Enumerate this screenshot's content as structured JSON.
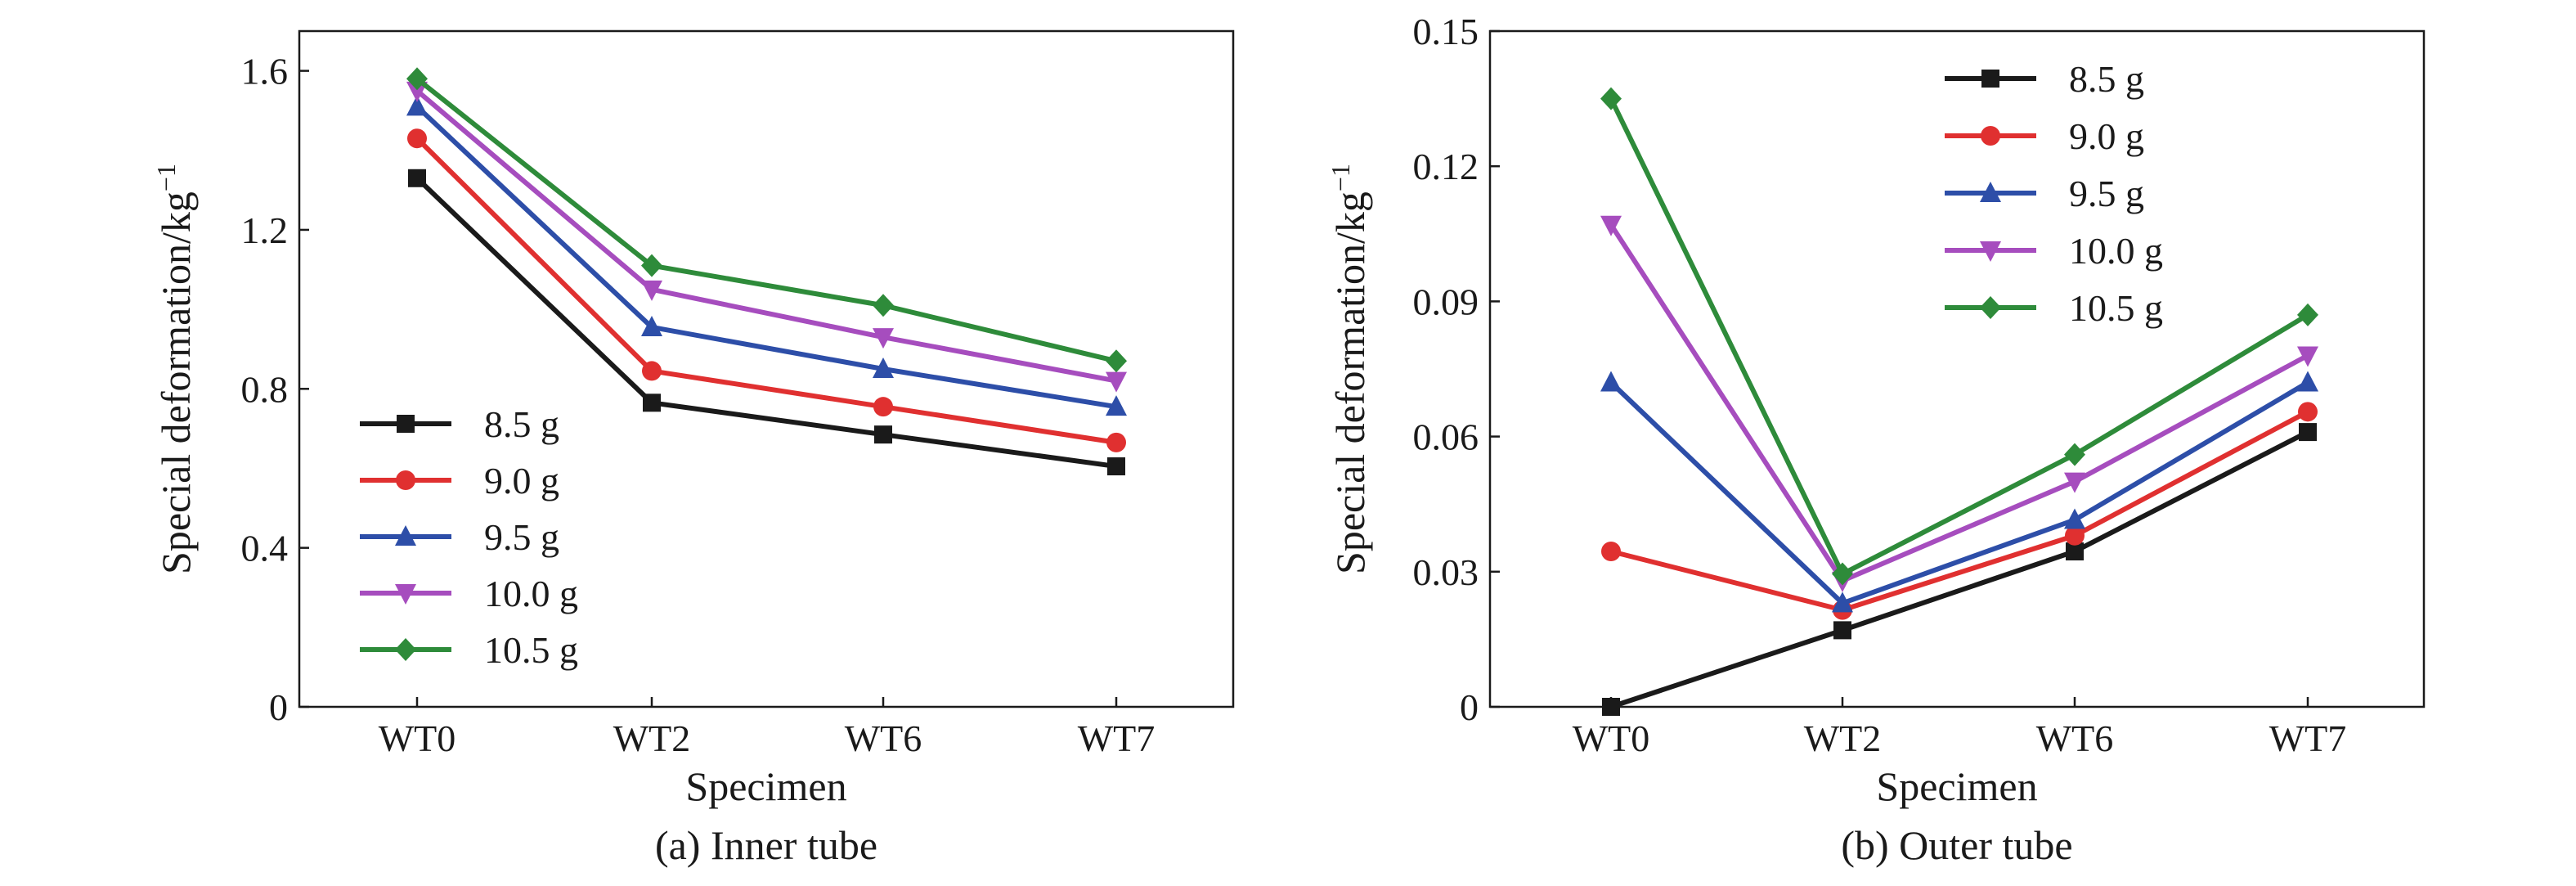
{
  "chart_data": [
    {
      "id": "inner",
      "type": "line",
      "caption": "(a) Inner tube",
      "xlabel": "Specimen",
      "ylabel": "Special deformation/kg",
      "ylabel_sup": "−1",
      "categories": [
        "WT0",
        "WT2",
        "WT6",
        "WT7"
      ],
      "ylim": [
        0,
        1.7
      ],
      "yticks": [
        0,
        0.4,
        0.8,
        1.2,
        1.6
      ],
      "ytick_labels": [
        "0",
        "0.4",
        "0.8",
        "1.2",
        "1.6"
      ],
      "legend_position": "bottom-left",
      "series": [
        {
          "name": "8.5 g",
          "color": "#1a1a1a",
          "marker": "square",
          "values": [
            1.33,
            0.765,
            0.685,
            0.605
          ]
        },
        {
          "name": "9.0 g",
          "color": "#e03030",
          "marker": "circle",
          "values": [
            1.43,
            0.845,
            0.755,
            0.665
          ]
        },
        {
          "name": "9.5 g",
          "color": "#2d4ea8",
          "marker": "triangle-up",
          "values": [
            1.51,
            0.955,
            0.85,
            0.755
          ]
        },
        {
          "name": "10.0 g",
          "color": "#a64dbe",
          "marker": "triangle-down",
          "values": [
            1.55,
            1.05,
            0.93,
            0.82
          ]
        },
        {
          "name": "10.5 g",
          "color": "#2e8b3a",
          "marker": "diamond",
          "values": [
            1.58,
            1.11,
            1.01,
            0.87
          ]
        }
      ]
    },
    {
      "id": "outer",
      "type": "line",
      "caption": "(b) Outer tube",
      "xlabel": "Specimen",
      "ylabel": "Special deformation/kg",
      "ylabel_sup": "−1",
      "categories": [
        "WT0",
        "WT2",
        "WT6",
        "WT7"
      ],
      "ylim": [
        0,
        0.15
      ],
      "yticks": [
        0,
        0.03,
        0.06,
        0.09,
        0.12,
        0.15
      ],
      "ytick_labels": [
        "0",
        "0.03",
        "0.06",
        "0.09",
        "0.12",
        "0.15"
      ],
      "legend_position": "top-center",
      "series": [
        {
          "name": "8.5 g",
          "color": "#1a1a1a",
          "marker": "square",
          "values": [
            0.0,
            0.017,
            0.0345,
            0.061
          ]
        },
        {
          "name": "9.0 g",
          "color": "#e03030",
          "marker": "circle",
          "values": [
            0.0345,
            0.0215,
            0.038,
            0.0655
          ]
        },
        {
          "name": "9.5 g",
          "color": "#2d4ea8",
          "marker": "triangle-up",
          "values": [
            0.072,
            0.023,
            0.0415,
            0.072
          ]
        },
        {
          "name": "10.0 g",
          "color": "#a64dbe",
          "marker": "triangle-down",
          "values": [
            0.107,
            0.028,
            0.05,
            0.078
          ]
        },
        {
          "name": "10.5 g",
          "color": "#2e8b3a",
          "marker": "diamond",
          "values": [
            0.135,
            0.0295,
            0.056,
            0.087
          ]
        }
      ]
    }
  ]
}
